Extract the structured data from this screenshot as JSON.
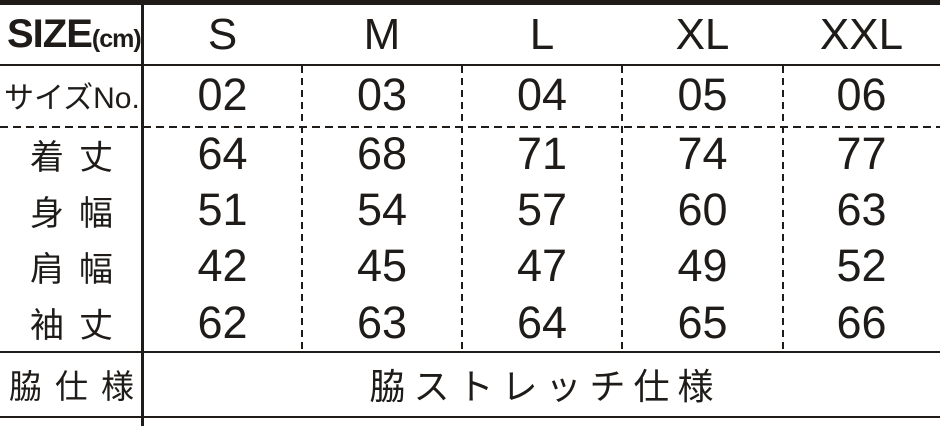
{
  "colors": {
    "ink": "#1e1b18",
    "background": "#ffffff"
  },
  "header": {
    "title": "SIZE",
    "unit": "(cm)"
  },
  "chart_data": {
    "type": "table",
    "title": "SIZE(cm)",
    "columns": [
      "S",
      "M",
      "L",
      "XL",
      "XXL"
    ],
    "rows": [
      {
        "label": "サイズNo.",
        "values": [
          "02",
          "03",
          "04",
          "05",
          "06"
        ]
      },
      {
        "label": "着丈",
        "values": [
          "64",
          "68",
          "71",
          "74",
          "77"
        ]
      },
      {
        "label": "身幅",
        "values": [
          "51",
          "54",
          "57",
          "60",
          "63"
        ]
      },
      {
        "label": "肩幅",
        "values": [
          "42",
          "45",
          "47",
          "49",
          "52"
        ]
      },
      {
        "label": "袖丈",
        "values": [
          "62",
          "63",
          "64",
          "65",
          "66"
        ]
      },
      {
        "label": "脇仕様",
        "values": [
          "脇ストレッチ仕様"
        ],
        "span_all_columns": true
      }
    ]
  }
}
